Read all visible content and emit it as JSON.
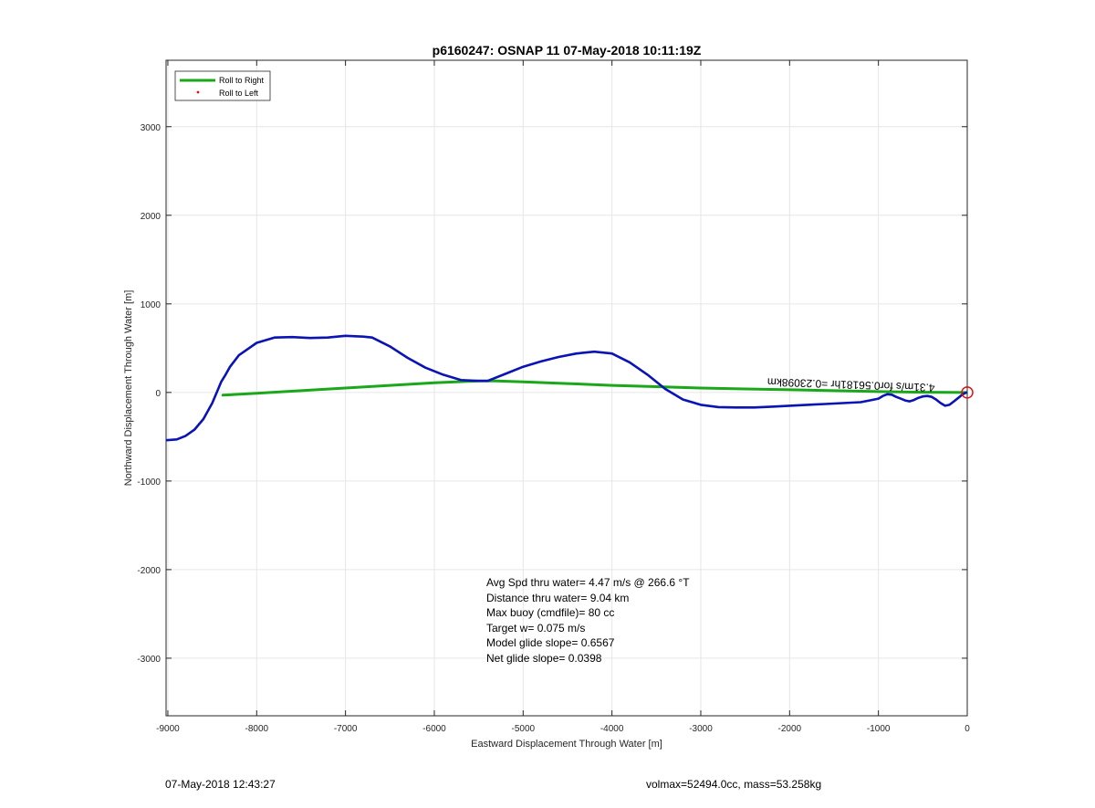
{
  "colors": {
    "track": "#0a14b4",
    "roll_right": "#1aa81a",
    "roll_left": "#e01010",
    "marker": "#e01010",
    "grid": "#e6e6e6",
    "axis": "#262626"
  },
  "chart_data": {
    "type": "line",
    "title": "p6160247: OSNAP 11 07-May-2018 10:11:19Z",
    "xlabel": "Eastward Displacement Through Water [m]",
    "ylabel": "Northward Displacement Through Water [m]",
    "xlim": [
      -9020,
      0
    ],
    "ylim": [
      -3650,
      3750
    ],
    "xticks": [
      -9000,
      -8000,
      -7000,
      -6000,
      -5000,
      -4000,
      -3000,
      -2000,
      -1000,
      0
    ],
    "yticks": [
      -3000,
      -2000,
      -1000,
      0,
      1000,
      2000,
      3000
    ],
    "grid": true,
    "legend": {
      "placement": "top-left",
      "entries": [
        {
          "label": "Roll to Right",
          "style": "line",
          "color": "#1aa81a"
        },
        {
          "label": "Roll to Left",
          "style": "dot",
          "color": "#e01010"
        }
      ]
    },
    "series": [
      {
        "color": "#0a14b4",
        "x": [
          -9020,
          -8900,
          -8800,
          -8700,
          -8600,
          -8500,
          -8450,
          -8400,
          -8350,
          -8300,
          -8200,
          -8000,
          -7800,
          -7600,
          -7400,
          -7200,
          -7000,
          -6800,
          -6700,
          -6500,
          -6300,
          -6100,
          -5900,
          -5700,
          -5500,
          -5400,
          -5200,
          -5000,
          -4800,
          -4600,
          -4400,
          -4200,
          -4000,
          -3800,
          -3600,
          -3400,
          -3200,
          -3000,
          -2800,
          -2600,
          -2400,
          -2200,
          -2000,
          -1800,
          -1600,
          -1400,
          -1200,
          -1100,
          -1000,
          -950,
          -900,
          -850,
          -800,
          -750,
          -700,
          -650,
          -600,
          -550,
          -500,
          -450,
          -400,
          -350,
          -300,
          -250,
          -200,
          -150,
          -100,
          -50,
          -20,
          0
        ],
        "y": [
          -540,
          -530,
          -490,
          -420,
          -300,
          -120,
          0,
          120,
          200,
          290,
          420,
          560,
          620,
          625,
          615,
          620,
          640,
          630,
          620,
          520,
          390,
          280,
          200,
          140,
          130,
          130,
          210,
          290,
          350,
          400,
          440,
          460,
          440,
          340,
          200,
          40,
          -80,
          -140,
          -165,
          -170,
          -170,
          -160,
          -150,
          -140,
          -130,
          -120,
          -110,
          -90,
          -70,
          -40,
          -20,
          -25,
          -50,
          -70,
          -90,
          -100,
          -85,
          -60,
          -45,
          -40,
          -50,
          -80,
          -120,
          -150,
          -140,
          -100,
          -60,
          -20,
          -5,
          0
        ]
      },
      {
        "name": "Roll to Right",
        "color": "#1aa81a",
        "x": [
          -8380,
          -8000,
          -7500,
          -7000,
          -6500,
          -6000,
          -5500,
          -5300,
          -5000,
          -4500,
          -4000,
          -3500,
          -3000,
          -2500,
          -2000,
          -1500,
          -1000,
          -500,
          0
        ],
        "y": [
          -30,
          -10,
          20,
          50,
          80,
          110,
          130,
          130,
          120,
          100,
          80,
          65,
          50,
          40,
          30,
          20,
          10,
          3,
          0
        ]
      }
    ],
    "marker": {
      "x": 0,
      "y": 0,
      "color": "#e01010"
    },
    "curve_label": {
      "text": "4.31m/s for0.56181hr =0.23098km",
      "x": -2250,
      "y": 160
    },
    "annotations": [
      "Avg Spd thru water=  4.47 m/s @ 266.6 °T",
      "Distance thru water=  9.04 km",
      "Max buoy (cmdfile)= 80 cc",
      "Target w= 0.075 m/s",
      "Model glide slope= 0.6567",
      "Net glide slope= 0.0398"
    ]
  },
  "footer": {
    "timestamp": "07-May-2018 12:43:27",
    "summary": "volmax=52494.0cc, mass=53.258kg"
  }
}
